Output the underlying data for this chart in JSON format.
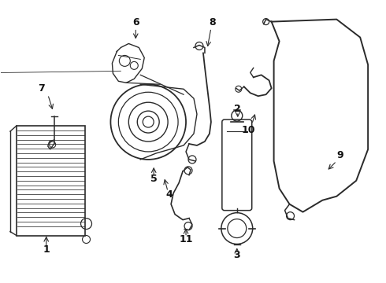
{
  "background_color": "#ffffff",
  "line_color": "#2a2a2a",
  "fig_width": 4.9,
  "fig_height": 3.6,
  "dpi": 100
}
